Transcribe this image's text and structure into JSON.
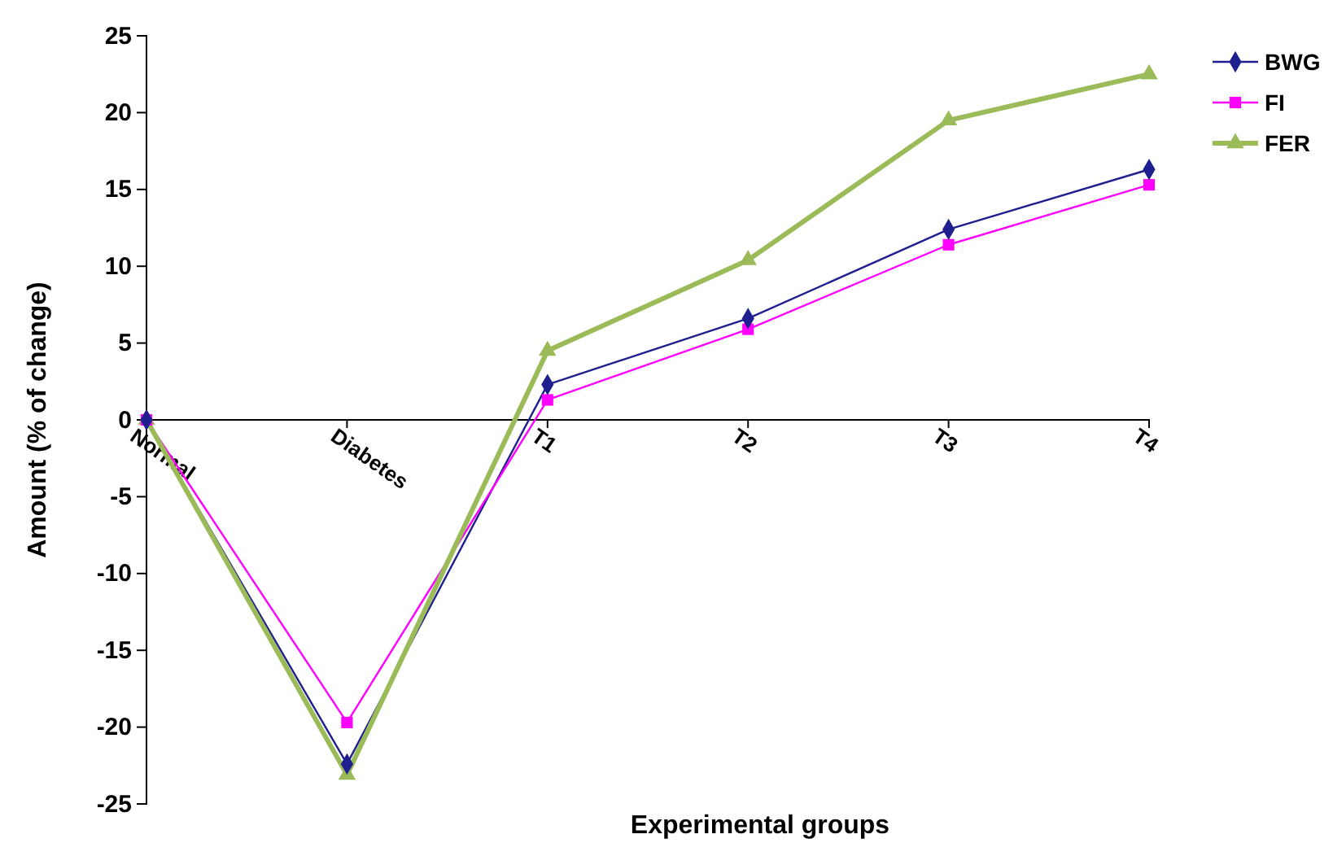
{
  "chart_data": {
    "type": "line",
    "xlabel": "Experimental groups",
    "ylabel": "Amount (% of change)",
    "categories": [
      "Normal",
      "Diabetes",
      "T1",
      "T2",
      "T3",
      "T4"
    ],
    "series": [
      {
        "name": "BWG",
        "color": "#1f1f8f",
        "marker": "diamond",
        "values": [
          0,
          -22.4,
          2.3,
          6.6,
          12.4,
          16.3
        ]
      },
      {
        "name": "FI",
        "color": "#ff00ff",
        "marker": "square",
        "values": [
          0,
          -19.7,
          1.3,
          5.9,
          11.4,
          15.3
        ]
      },
      {
        "name": "FER",
        "color": "#9bbb59",
        "marker": "triangle",
        "values": [
          0,
          -23.1,
          4.5,
          10.4,
          19.5,
          22.5
        ]
      }
    ],
    "ylim": [
      -25,
      25
    ],
    "yticks": [
      -25,
      -20,
      -15,
      -10,
      -5,
      0,
      5,
      10,
      15,
      20,
      25
    ],
    "grid": false,
    "legend": "top right"
  }
}
